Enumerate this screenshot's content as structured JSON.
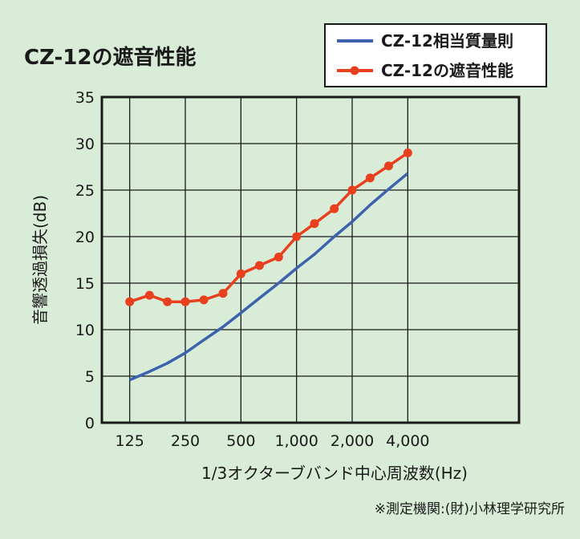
{
  "chart_data": {
    "type": "line",
    "title": "CZ-12の遮音性能",
    "xlabel": "1/3オクターブバンド中心周波数(Hz)",
    "ylabel": "音響透過損失(dB)",
    "source_note": "※測定機関:(財)小林理学研究所",
    "ylim": [
      0,
      35
    ],
    "y_ticks": [
      0,
      5,
      10,
      15,
      20,
      25,
      30,
      35
    ],
    "xlim_log2": [
      -1.5,
      6.0
    ],
    "x_ticks": [
      {
        "value": 125,
        "label": "125"
      },
      {
        "value": 250,
        "label": "250"
      },
      {
        "value": 500,
        "label": "500"
      },
      {
        "value": 1000,
        "label": "1,000"
      },
      {
        "value": 2000,
        "label": "2,000"
      },
      {
        "value": 4000,
        "label": "4,000"
      }
    ],
    "x_scale": "log",
    "grid": true,
    "legend_position": "top-right",
    "series": [
      {
        "name": "CZ-12相当質量則",
        "color": "#3b62ad",
        "marker": "none",
        "x": [
          125,
          160,
          200,
          250,
          315,
          400,
          500,
          630,
          800,
          1000,
          1250,
          1600,
          2000,
          2500,
          3150,
          4000
        ],
        "y": [
          4.6,
          5.5,
          6.4,
          7.5,
          8.9,
          10.3,
          11.8,
          13.4,
          15.0,
          16.6,
          18.1,
          20.0,
          21.6,
          23.4,
          25.1,
          26.8
        ]
      },
      {
        "name": "CZ-12の遮音性能",
        "color": "#e8401f",
        "marker": "circle",
        "x": [
          125,
          160,
          200,
          250,
          315,
          400,
          500,
          630,
          800,
          1000,
          1250,
          1600,
          2000,
          2500,
          3150,
          4000
        ],
        "y": [
          13.0,
          13.7,
          13.0,
          13.0,
          13.2,
          13.9,
          16.0,
          16.9,
          17.8,
          20.0,
          21.4,
          23.0,
          25.0,
          26.3,
          27.6,
          29.0
        ]
      }
    ]
  }
}
